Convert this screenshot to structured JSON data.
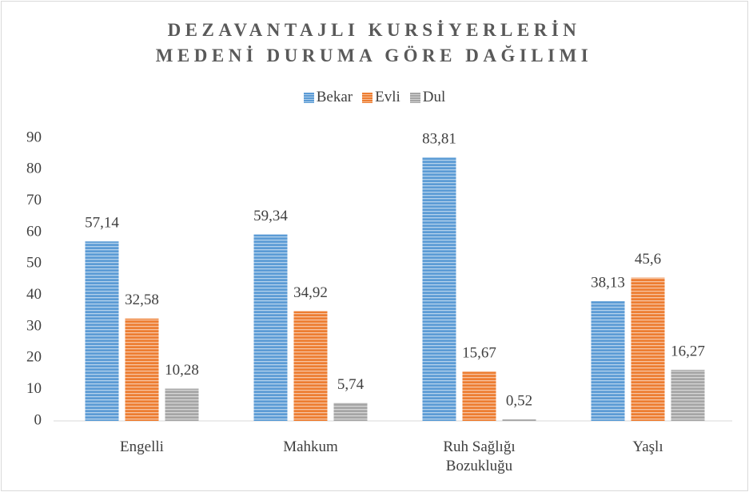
{
  "chart_data": {
    "type": "bar",
    "title": "DEZAVANTAJLI KURSİYERLERİN MEDENİ DURUMA GÖRE DAĞILIMI",
    "categories": [
      "Engelli",
      "Mahkum",
      "Ruh Sağlığı Bozukluğu",
      "Yaşlı"
    ],
    "series": [
      {
        "name": "Bekar",
        "color": "#5b9bd5",
        "values": [
          57.14,
          59.34,
          83.81,
          38.13
        ],
        "value_labels": [
          "57,14",
          "59,34",
          "83,81",
          "38,13"
        ]
      },
      {
        "name": "Evli",
        "color": "#ed7d31",
        "values": [
          32.58,
          34.92,
          15.67,
          45.6
        ],
        "value_labels": [
          "32,58",
          "34,92",
          "15,67",
          "45,6"
        ]
      },
      {
        "name": "Dul",
        "color": "#a5a5a5",
        "values": [
          10.28,
          5.74,
          0.52,
          16.27
        ],
        "value_labels": [
          "10,28",
          "5,74",
          "0,52",
          "16,27"
        ]
      }
    ],
    "ylim": [
      0,
      90
    ],
    "yticks": [
      0,
      10,
      20,
      30,
      40,
      50,
      60,
      70,
      80,
      90
    ],
    "grid": false,
    "legend": "top"
  }
}
